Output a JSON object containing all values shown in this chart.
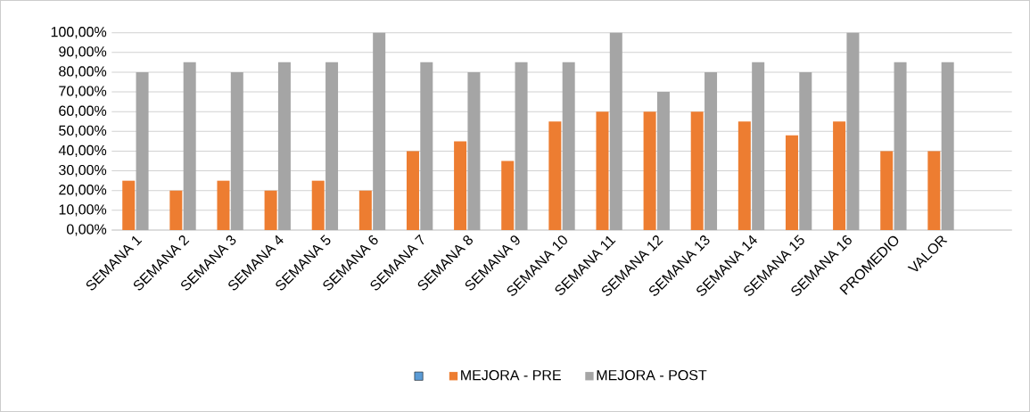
{
  "chart_data": {
    "type": "bar",
    "categories": [
      "SEMANA 1",
      "SEMANA 2",
      "SEMANA 3",
      "SEMANA 4",
      "SEMANA 5",
      "SEMANA 6",
      "SEMANA 7",
      "SEMANA 8",
      "SEMANA 9",
      "SEMANA 10",
      "SEMANA 11",
      "SEMANA 12",
      "SEMANA 13",
      "SEMANA 14",
      "SEMANA 15",
      "SEMANA 16",
      "PROMEDIO",
      "VALOR"
    ],
    "series": [
      {
        "color": "#5b9bd5",
        "values": [
          null,
          null,
          null,
          null,
          null,
          null,
          null,
          null,
          null,
          null,
          null,
          null,
          null,
          null,
          null,
          null,
          null,
          null
        ]
      },
      {
        "name": "MEJORA - PRE",
        "color": "#ed7d31",
        "values": [
          25,
          20,
          25,
          20,
          25,
          20,
          40,
          45,
          35,
          55,
          60,
          60,
          60,
          55,
          48,
          55,
          40,
          40
        ]
      },
      {
        "name": "MEJORA - POST",
        "color": "#a5a5a5",
        "values": [
          80,
          85,
          80,
          85,
          85,
          100,
          85,
          80,
          85,
          85,
          100,
          70,
          80,
          85,
          80,
          100,
          85,
          85
        ]
      }
    ],
    "ylim": [
      0,
      100
    ],
    "yticks": [
      {
        "value": 0,
        "label": "0,00%"
      },
      {
        "value": 10,
        "label": "10,00%"
      },
      {
        "value": 20,
        "label": "20,00%"
      },
      {
        "value": 30,
        "label": "30,00%"
      },
      {
        "value": 40,
        "label": "40,00%"
      },
      {
        "value": 50,
        "label": "50,00%"
      },
      {
        "value": 60,
        "label": "60,00%"
      },
      {
        "value": 70,
        "label": "70,00%"
      },
      {
        "value": 80,
        "label": "80,00%"
      },
      {
        "value": 90,
        "label": "90,00%"
      },
      {
        "value": 100,
        "label": "100,00%"
      }
    ],
    "grid": "y",
    "legend": "bottom"
  }
}
